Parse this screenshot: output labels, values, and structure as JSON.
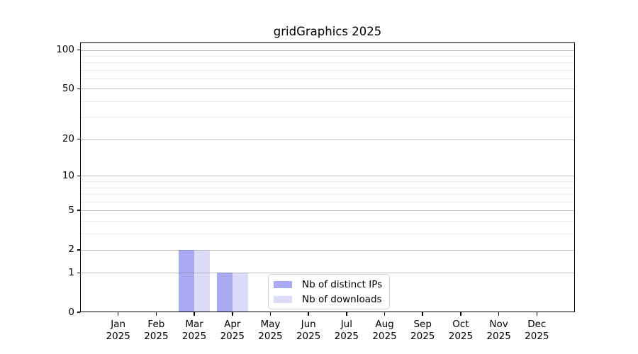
{
  "chart_data": {
    "type": "bar",
    "title": "gridGraphics 2025",
    "categories": [
      "Jan",
      "Feb",
      "Mar",
      "Apr",
      "May",
      "Jun",
      "Jul",
      "Aug",
      "Sep",
      "Oct",
      "Nov",
      "Dec"
    ],
    "category_year": "2025",
    "series": [
      {
        "name": "Nb of distinct IPs",
        "color": "#aaaaf2",
        "values": [
          0,
          0,
          2,
          1,
          0,
          0,
          0,
          0,
          0,
          0,
          0,
          0
        ]
      },
      {
        "name": "Nb of downloads",
        "color": "#dcdcf8",
        "values": [
          0,
          0,
          2,
          1,
          0,
          0,
          0,
          0,
          0,
          0,
          0,
          0
        ]
      }
    ],
    "yscale": "log10(value+1)",
    "ylim": [
      0,
      105
    ],
    "yticks": [
      0,
      1,
      2,
      5,
      10,
      20,
      50,
      100
    ],
    "major_gridlines": [
      1,
      2,
      5,
      10,
      20,
      50,
      100
    ],
    "minor_gridlines": [
      1,
      2,
      3,
      4,
      5,
      6,
      7,
      8,
      9,
      10,
      20,
      30,
      40,
      50,
      60,
      70,
      80,
      90,
      100
    ],
    "grid": true,
    "legend_position": "inside lower center"
  },
  "colors": {
    "bar_distinct_ips": "#aaaaf2",
    "bar_downloads": "#dcdcf8",
    "grid_minor": "#ededed",
    "grid_major": "#b4b4b4",
    "axis": "#000000",
    "text": "#000000",
    "background": "#ffffff",
    "legend_border": "#d2d2d2"
  }
}
